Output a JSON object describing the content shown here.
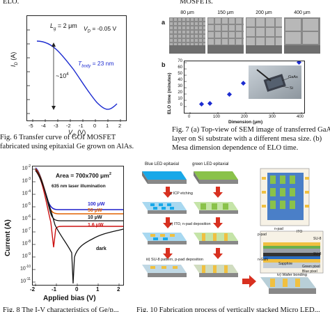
{
  "top_fragments": {
    "left": "ELO.",
    "right": "MOSFETs."
  },
  "fig6": {
    "caption_line1": "Fig. 6  Transfer  curve  of  GOI  MOSFET",
    "caption_line2": "fabricated using epitaxial Ge grown on AlAs.",
    "lg_label": "L",
    "lg_sub": "g",
    "lg_value": " = 2 μm",
    "vd_label": "V",
    "vd_sub": "D",
    "vd_value": " = -0.05 V",
    "tbody_label": "T",
    "tbody_sub": "body",
    "tbody_value": " = 23 nm",
    "ratio_label": "~10",
    "ratio_sup": "4",
    "ylabel_main": "I",
    "ylabel_sub": "D",
    "ylabel_unit": " (A)",
    "xlabel_main": "V",
    "xlabel_sub": "G",
    "xlabel_unit": " (V)",
    "xticks": [
      "-5",
      "-4",
      "-3",
      "-2",
      "-1",
      "0",
      "1",
      "2"
    ]
  },
  "fig7": {
    "caption_line1": "Fig. 7 (a) Top-view of SEM image of transferred GaAs",
    "caption_line2": "layer on Si substrate with a different mesa size.  (b)",
    "caption_line3": "Mesa dimension dependence of ELO time.",
    "panel_a": "a",
    "panel_b": "b",
    "sem_sizes": [
      "80 μm",
      "150 μm",
      "200 μm",
      "400 μm"
    ],
    "inset_label_gaas": "GaAs",
    "inset_label_si": "Si",
    "ylabel": "ELO time (minutes)",
    "xlabel": "Dimension (μm)",
    "yticks": [
      "0",
      "10",
      "20",
      "30",
      "40",
      "50",
      "60",
      "70"
    ],
    "xticks": [
      "0",
      "100",
      "200",
      "300",
      "400"
    ]
  },
  "fig_iv": {
    "annotation_area": "Area = 700x700 μm",
    "annotation_area_sup": "2",
    "annotation_laser": "635 nm laser illumination",
    "ylabel": "Current (A)",
    "xlabel": "Applied bias (V)",
    "yticks": [
      "10",
      "10",
      "10",
      "10",
      "10",
      "10",
      "10",
      "10",
      "10",
      "10"
    ],
    "ytick_exps": [
      "-2",
      "-3",
      "-4",
      "-5",
      "-6",
      "-7",
      "-8",
      "-9",
      "-10",
      "-11"
    ],
    "xticks": [
      "-2",
      "-1",
      "0",
      "1",
      "2"
    ],
    "series_labels": [
      "100 μW",
      "50 μW",
      "10 μW",
      "1.6 μW",
      "dark"
    ],
    "series_colors": [
      "#1f1fcc",
      "#e06000",
      "#111111",
      "#cc1111",
      "#111111"
    ],
    "label_colors": [
      "#1f1fcc",
      "#e06000",
      "#111111",
      "#cc1111",
      "#111111"
    ],
    "bottom_caption": "Fig. 8  The I-V characteristics of  Ge/p..."
  },
  "fig_process": {
    "blue_label": "Blue LED epitaxial",
    "green_label": "green LED epitaxial",
    "step1": "i) ICP etching",
    "step2": "ii) ITO, n-pad deposition",
    "step3": "iii) SU-8 pattern, p-pad deposition",
    "step4": "iv) Wafer bonding",
    "labels_right": {
      "p_pad": "p-pad",
      "n_pad": "n-pad",
      "ito": "ITO",
      "su8_1": "SU-8",
      "su8_2": "SU-8",
      "ngan": "n-GaN",
      "sapphire": "Sapphire",
      "green_pixel": "Green pixel",
      "blue_pixel": "Blue pixel"
    },
    "bottom_caption": "Fig. 10  Fabrication process of vertically stacked Micro LED..."
  }
}
